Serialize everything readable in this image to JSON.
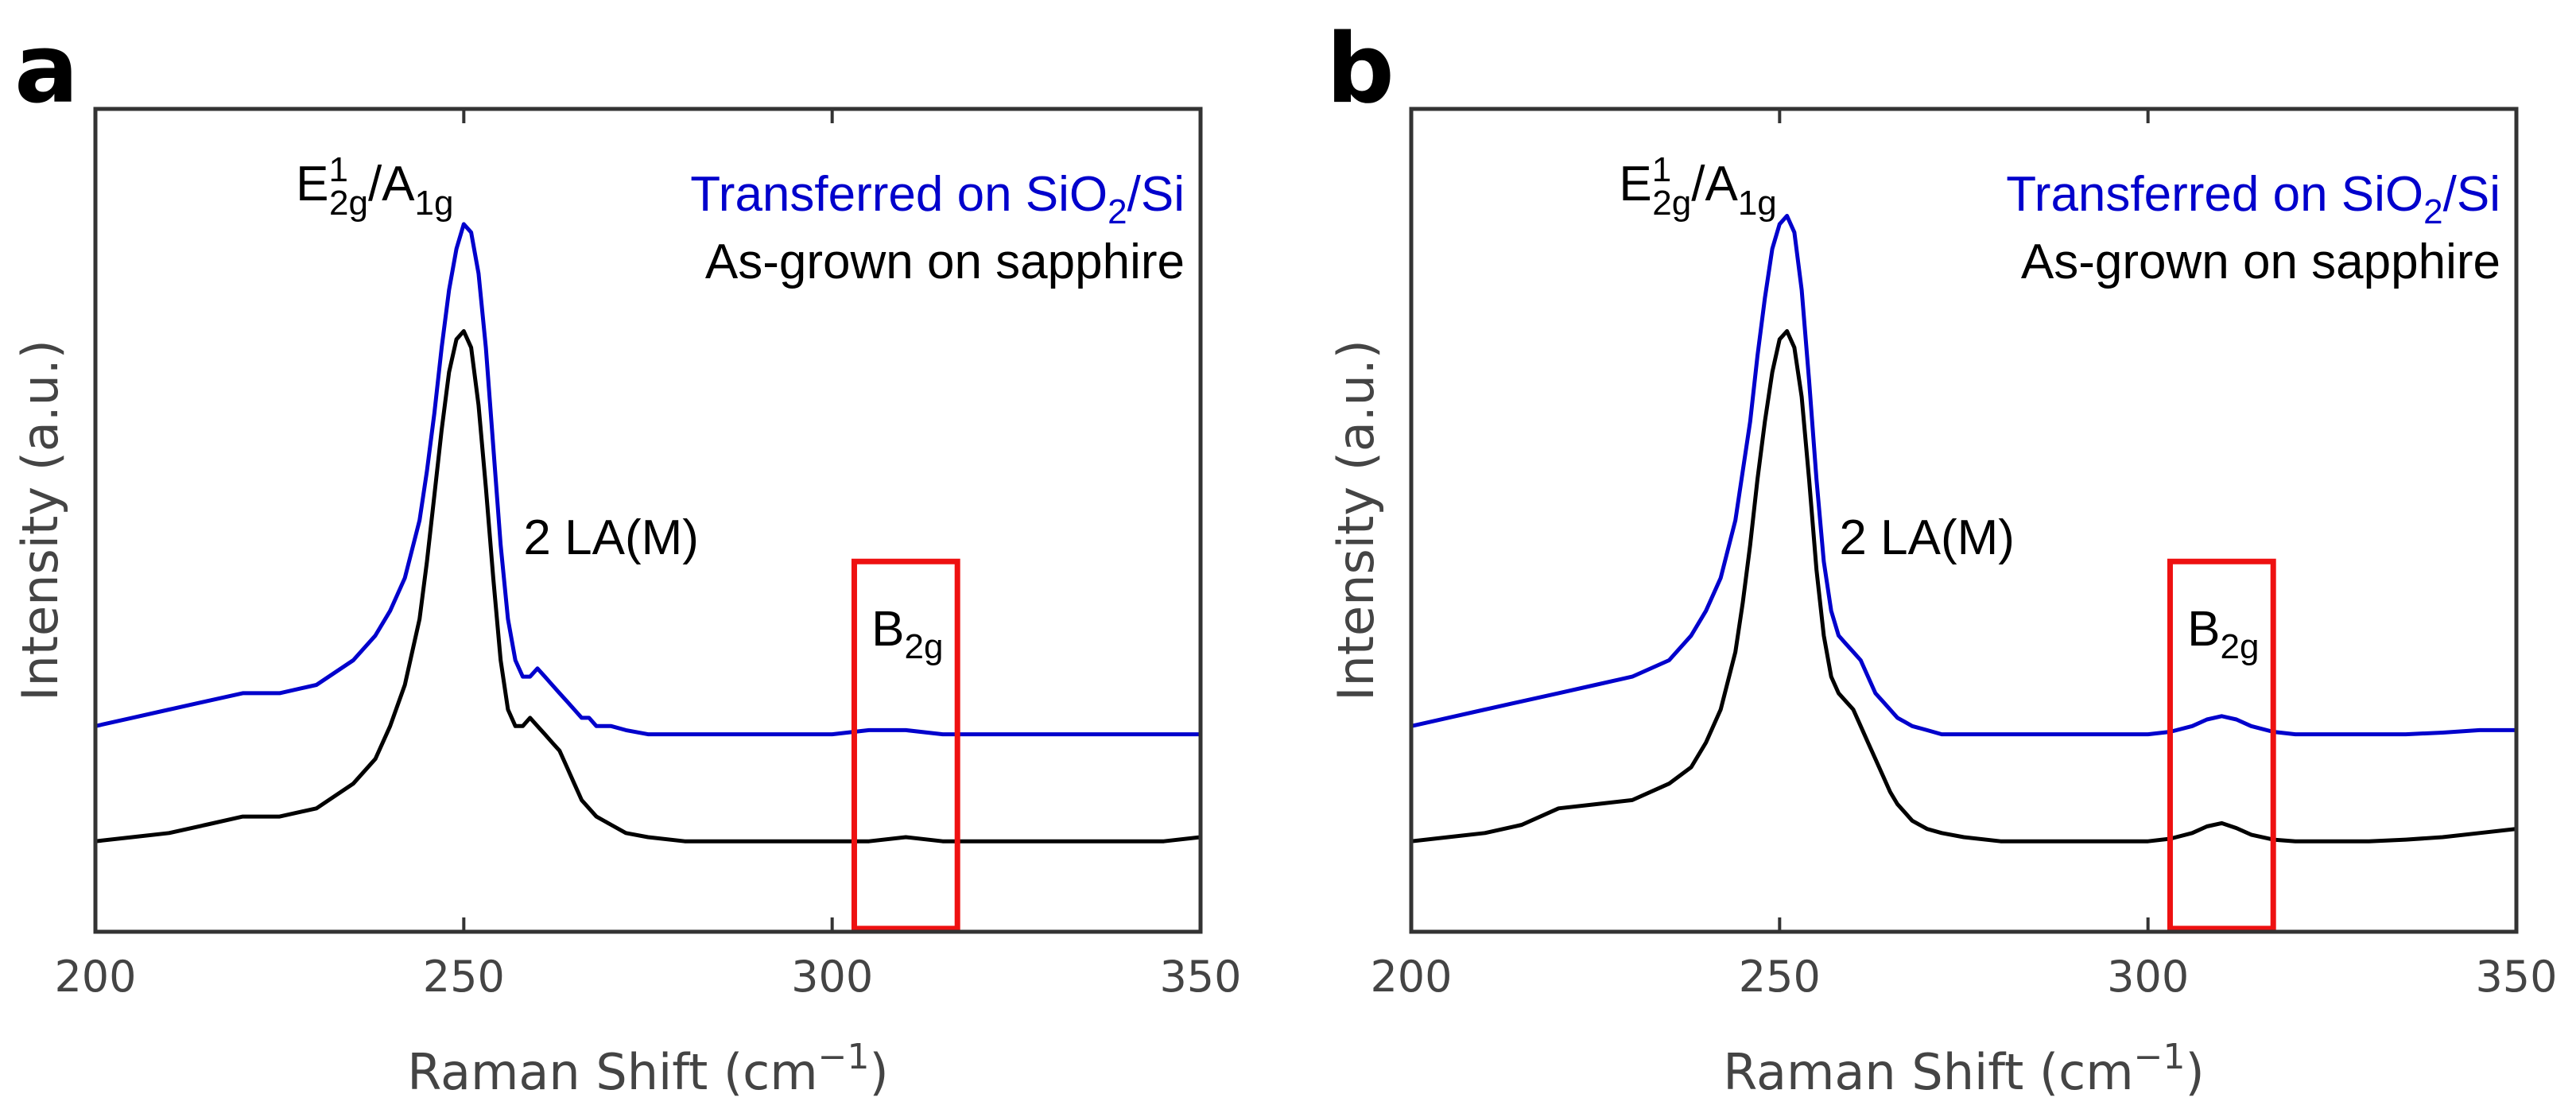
{
  "chart_data": [
    {
      "type": "line",
      "panel": "a",
      "xlabel": "Raman Shift (cm",
      "xlabel_superscript": "−1",
      "xlabel_close": ")",
      "ylabel": "Intensity (a.u.)",
      "xlim": [
        200,
        350
      ],
      "ylim": [
        0,
        1
      ],
      "ticks": [
        "200",
        "250",
        "300",
        "350"
      ],
      "tick_values": [
        200,
        250,
        300,
        350
      ],
      "grid": false,
      "legend_position": "top-right",
      "legend": {
        "transferred": {
          "pre": "Transferred on SiO",
          "sub": "2",
          "post": "/Si",
          "color": "#0000cc"
        },
        "asgrown": {
          "text": "As-grown on sapphire",
          "color": "#000000"
        }
      },
      "annotations": {
        "peak_e": "E",
        "peak_e_sup": "1",
        "peak_e_sub": "2g",
        "peak_sep": "/A",
        "peak_a_sub": "1g",
        "peak_x": 250,
        "la": "2 LA(M)",
        "b_main": "B",
        "b_sub": "2g"
      },
      "highlight_box": {
        "x": [
          303,
          317
        ],
        "y": [
          0.0,
          0.45
        ],
        "color": "#ee1111"
      },
      "series": [
        {
          "name": "Transferred on SiO2/Si",
          "color": "#0000cc",
          "x": [
            200,
            205,
            210,
            215,
            220,
            225,
            230,
            235,
            238,
            240,
            242,
            244,
            245,
            246,
            247,
            248,
            249,
            250,
            251,
            252,
            253,
            254,
            255,
            256,
            257,
            258,
            259,
            260,
            261,
            262,
            263,
            264,
            265,
            266,
            267,
            268,
            270,
            272,
            275,
            280,
            285,
            290,
            295,
            300,
            305,
            310,
            315,
            320,
            325,
            330,
            335,
            340,
            345,
            350
          ],
          "values": [
            0.25,
            0.26,
            0.27,
            0.28,
            0.29,
            0.29,
            0.3,
            0.33,
            0.36,
            0.39,
            0.43,
            0.5,
            0.56,
            0.63,
            0.71,
            0.78,
            0.83,
            0.86,
            0.85,
            0.8,
            0.71,
            0.59,
            0.47,
            0.38,
            0.33,
            0.31,
            0.31,
            0.32,
            0.31,
            0.3,
            0.29,
            0.28,
            0.27,
            0.26,
            0.26,
            0.25,
            0.25,
            0.245,
            0.24,
            0.24,
            0.24,
            0.24,
            0.24,
            0.24,
            0.245,
            0.245,
            0.24,
            0.24,
            0.24,
            0.24,
            0.24,
            0.24,
            0.24,
            0.24
          ]
        },
        {
          "name": "As-grown on sapphire",
          "color": "#000000",
          "x": [
            200,
            205,
            210,
            215,
            220,
            225,
            230,
            235,
            238,
            240,
            242,
            244,
            245,
            246,
            247,
            248,
            249,
            250,
            251,
            252,
            253,
            254,
            255,
            256,
            257,
            258,
            259,
            260,
            261,
            262,
            263,
            264,
            265,
            266,
            267,
            268,
            270,
            272,
            275,
            280,
            285,
            290,
            295,
            300,
            305,
            310,
            315,
            320,
            325,
            330,
            335,
            340,
            345,
            350
          ],
          "values": [
            0.11,
            0.115,
            0.12,
            0.13,
            0.14,
            0.14,
            0.15,
            0.18,
            0.21,
            0.25,
            0.3,
            0.38,
            0.45,
            0.53,
            0.61,
            0.68,
            0.72,
            0.73,
            0.71,
            0.64,
            0.54,
            0.43,
            0.33,
            0.27,
            0.25,
            0.25,
            0.26,
            0.25,
            0.24,
            0.23,
            0.22,
            0.2,
            0.18,
            0.16,
            0.15,
            0.14,
            0.13,
            0.12,
            0.115,
            0.11,
            0.11,
            0.11,
            0.11,
            0.11,
            0.11,
            0.115,
            0.11,
            0.11,
            0.11,
            0.11,
            0.11,
            0.11,
            0.11,
            0.115
          ]
        }
      ]
    },
    {
      "type": "line",
      "panel": "b",
      "xlabel": "Raman Shift (cm",
      "xlabel_superscript": "−1",
      "xlabel_close": ")",
      "ylabel": "Intensity (a.u.)",
      "xlim": [
        200,
        350
      ],
      "ylim": [
        0,
        1
      ],
      "ticks": [
        "200",
        "250",
        "300",
        "350"
      ],
      "tick_values": [
        200,
        250,
        300,
        350
      ],
      "grid": false,
      "legend_position": "top-right",
      "legend": {
        "transferred": {
          "pre": "Transferred on SiO",
          "sub": "2",
          "post": "/Si",
          "color": "#0000cc"
        },
        "asgrown": {
          "text": "As-grown on sapphire",
          "color": "#000000"
        }
      },
      "annotations": {
        "peak_e": "E",
        "peak_e_sup": "1",
        "peak_e_sub": "2g",
        "peak_sep": "/A",
        "peak_a_sub": "1g",
        "peak_x": 251,
        "la": "2 LA(M)",
        "b_main": "B",
        "b_sub": "2g"
      },
      "highlight_box": {
        "x": [
          303,
          317
        ],
        "y": [
          0.0,
          0.45
        ],
        "color": "#ee1111"
      },
      "series": [
        {
          "name": "Transferred on SiO2/Si",
          "color": "#0000cc",
          "x": [
            200,
            205,
            210,
            215,
            220,
            225,
            230,
            235,
            238,
            240,
            242,
            244,
            245,
            246,
            247,
            248,
            249,
            250,
            251,
            252,
            253,
            254,
            255,
            256,
            257,
            258,
            259,
            260,
            261,
            262,
            263,
            264,
            265,
            266,
            267,
            268,
            270,
            272,
            275,
            280,
            285,
            290,
            295,
            300,
            303,
            306,
            308,
            310,
            312,
            314,
            317,
            320,
            325,
            330,
            335,
            340,
            345,
            350
          ],
          "values": [
            0.25,
            0.26,
            0.27,
            0.28,
            0.29,
            0.3,
            0.31,
            0.33,
            0.36,
            0.39,
            0.43,
            0.5,
            0.56,
            0.62,
            0.7,
            0.77,
            0.83,
            0.86,
            0.87,
            0.85,
            0.78,
            0.67,
            0.55,
            0.45,
            0.39,
            0.36,
            0.35,
            0.34,
            0.33,
            0.31,
            0.29,
            0.28,
            0.27,
            0.26,
            0.255,
            0.25,
            0.245,
            0.24,
            0.24,
            0.24,
            0.24,
            0.24,
            0.24,
            0.24,
            0.243,
            0.25,
            0.258,
            0.262,
            0.258,
            0.25,
            0.243,
            0.24,
            0.24,
            0.24,
            0.24,
            0.242,
            0.245,
            0.245
          ]
        },
        {
          "name": "As-grown on sapphire",
          "color": "#000000",
          "x": [
            200,
            205,
            210,
            215,
            220,
            225,
            230,
            235,
            238,
            240,
            242,
            244,
            245,
            246,
            247,
            248,
            249,
            250,
            251,
            252,
            253,
            254,
            255,
            256,
            257,
            258,
            259,
            260,
            261,
            262,
            263,
            264,
            265,
            266,
            267,
            268,
            270,
            272,
            275,
            280,
            285,
            290,
            295,
            300,
            303,
            306,
            308,
            310,
            312,
            314,
            317,
            320,
            325,
            330,
            335,
            340,
            345,
            350
          ],
          "values": [
            0.11,
            0.115,
            0.12,
            0.13,
            0.15,
            0.155,
            0.16,
            0.18,
            0.2,
            0.23,
            0.27,
            0.34,
            0.4,
            0.47,
            0.55,
            0.62,
            0.68,
            0.72,
            0.73,
            0.71,
            0.65,
            0.55,
            0.44,
            0.36,
            0.31,
            0.29,
            0.28,
            0.27,
            0.25,
            0.23,
            0.21,
            0.19,
            0.17,
            0.155,
            0.145,
            0.135,
            0.125,
            0.12,
            0.115,
            0.11,
            0.11,
            0.11,
            0.11,
            0.11,
            0.113,
            0.12,
            0.128,
            0.132,
            0.126,
            0.118,
            0.112,
            0.11,
            0.11,
            0.11,
            0.112,
            0.115,
            0.12,
            0.125
          ]
        }
      ]
    }
  ]
}
